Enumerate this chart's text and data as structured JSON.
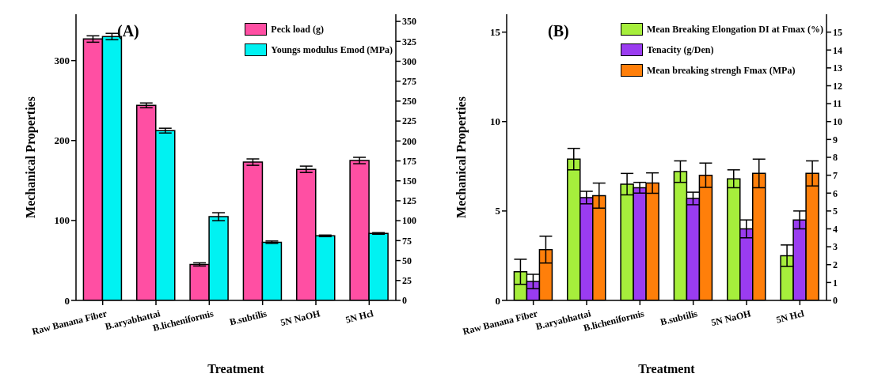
{
  "chart_data": [
    {
      "type": "bar",
      "xlabel": "Treatment",
      "ylabel": "Mechanical Properties",
      "annotations": [
        "(A)"
      ],
      "categories": [
        "Raw Banana Fiber",
        "B.aryabhattai",
        "B.licheniformis",
        "B.subtilis",
        "5N NaOH",
        "5N Hcl"
      ],
      "series": [
        {
          "name": "Peck load (g)",
          "color": "#ff4fa3",
          "values": [
            327,
            244,
            45,
            173,
            164,
            175
          ],
          "errors": [
            4,
            3,
            2,
            4,
            4,
            4
          ]
        },
        {
          "name": "Youngs modulus Emod (MPa)",
          "color": "#00f2f2",
          "axis": "y2",
          "values": [
            331,
            213,
            105,
            73,
            81,
            84
          ],
          "errors": [
            4,
            3,
            5,
            1.5,
            1,
            1
          ]
        }
      ],
      "ylim": [
        0,
        358
      ],
      "yticks": [
        0,
        100,
        200,
        300
      ],
      "y2lim": [
        0,
        359
      ],
      "y2ticks": [
        0,
        25,
        50,
        75,
        100,
        125,
        150,
        175,
        200,
        225,
        250,
        275,
        300,
        325,
        350
      ],
      "grid": false,
      "legend": "top right"
    },
    {
      "type": "bar",
      "xlabel": "Treatment",
      "ylabel": "Mechanical Properties",
      "annotations": [
        "(B)"
      ],
      "categories": [
        "Raw Banana Fiber",
        "B.aryabhattai",
        "B.licheniformis",
        "B.subtilis",
        "5N NaOH",
        "5N Hcl"
      ],
      "series": [
        {
          "name": "Mean Breaking Elongation DI at Fmax (%)",
          "color": "#a6ee3c",
          "values": [
            1.6,
            7.9,
            6.5,
            7.2,
            6.8,
            2.5
          ],
          "errors": [
            0.7,
            0.6,
            0.6,
            0.6,
            0.5,
            0.6
          ]
        },
        {
          "name": "Tenacity (g/Den)",
          "color": "#9a3cf0",
          "values": [
            1.06,
            5.75,
            6.3,
            5.7,
            4.0,
            4.5
          ],
          "errors": [
            0.4,
            0.35,
            0.3,
            0.35,
            0.5,
            0.5
          ]
        },
        {
          "name": "Mean breaking strengh Fmax (MPa)",
          "color": "#ff7f0a",
          "values": [
            2.84,
            5.86,
            6.56,
            7.0,
            7.1,
            7.1
          ],
          "errors": [
            0.75,
            0.7,
            0.57,
            0.68,
            0.8,
            0.7
          ]
        }
      ],
      "ylim": [
        0,
        16
      ],
      "yticks": [
        0,
        5,
        10,
        15
      ],
      "y2lim": [
        0,
        16
      ],
      "y2ticks": [
        0,
        1,
        2,
        3,
        4,
        5,
        6,
        7,
        8,
        9,
        10,
        11,
        12,
        13,
        14,
        15
      ],
      "grid": false,
      "legend": "top right"
    }
  ]
}
